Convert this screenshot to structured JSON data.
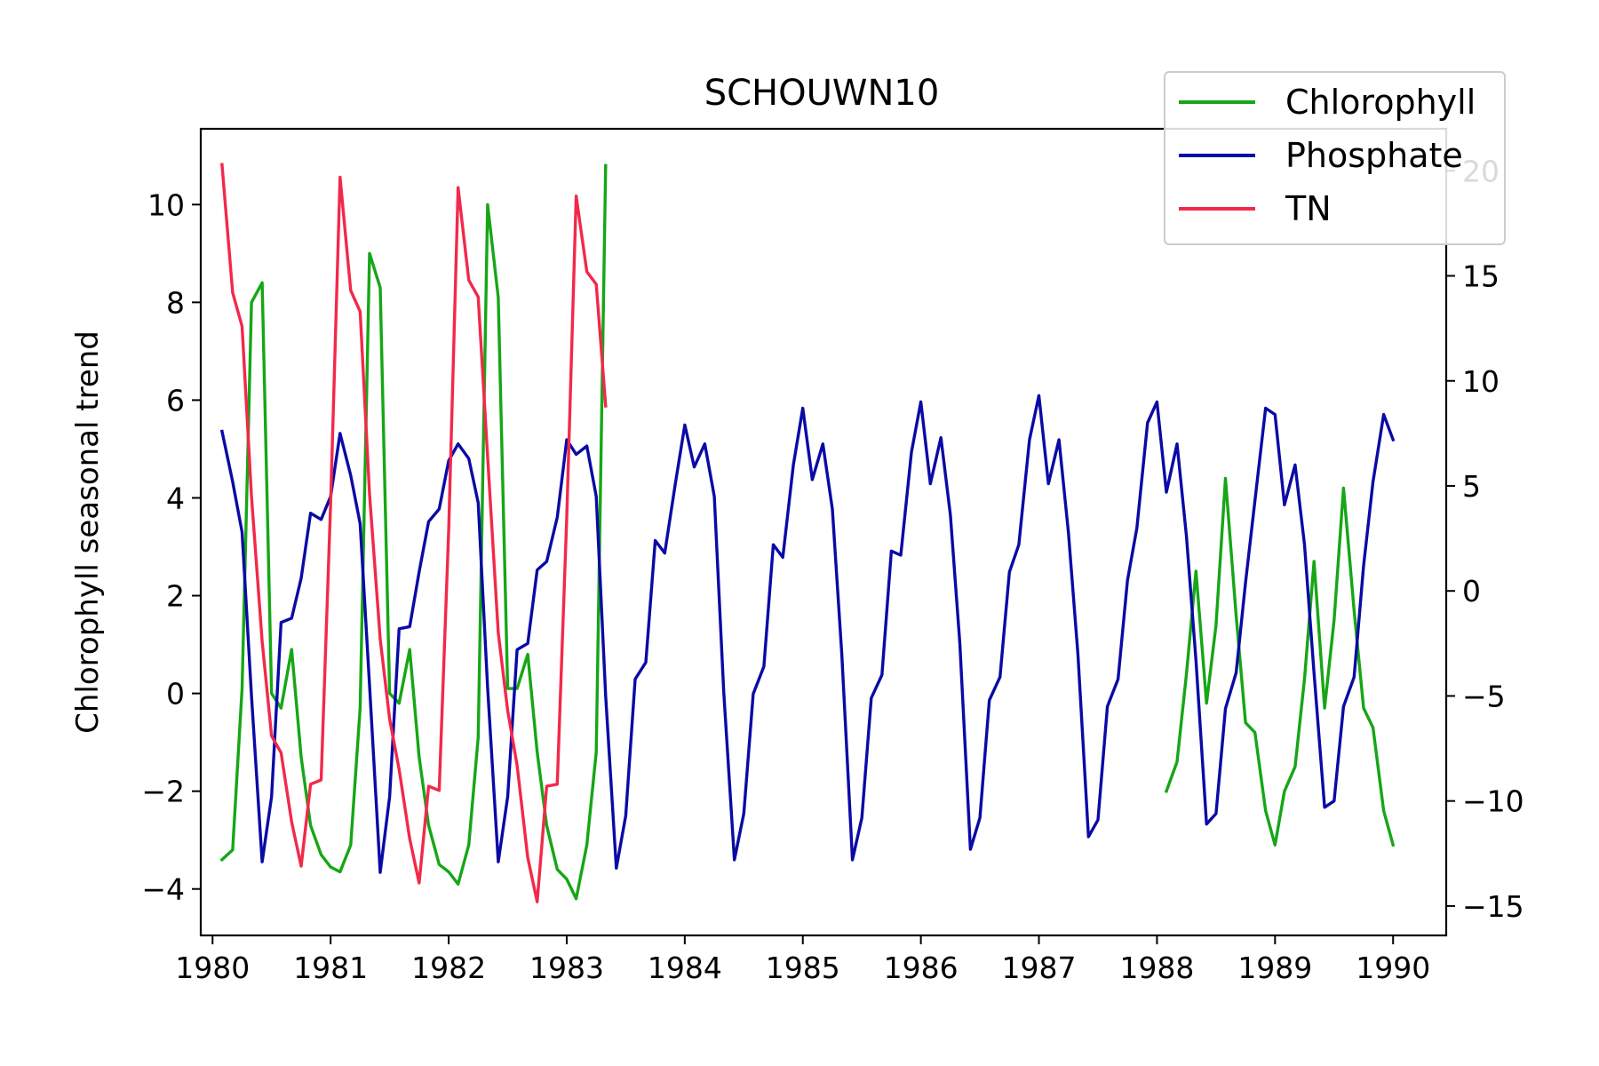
{
  "chart_data": {
    "type": "line",
    "title": "SCHOUWN10",
    "ylabel": "Chlorophyll seasonal trend",
    "xlabel": "",
    "xlim": [
      1979.9,
      1990.45
    ],
    "ylim": [
      -4.95,
      11.55
    ],
    "y2lim": [
      -16.4,
      22.0
    ],
    "xticks": [
      1980,
      1981,
      1982,
      1983,
      1984,
      1985,
      1986,
      1987,
      1988,
      1989,
      1990
    ],
    "yticks": [
      -4,
      -2,
      0,
      2,
      4,
      6,
      8,
      10
    ],
    "y2ticks": [
      -15,
      -10,
      -5,
      0,
      5,
      10,
      15,
      20
    ],
    "xtick_labels": [
      "1980",
      "1981",
      "1982",
      "1983",
      "1984",
      "1985",
      "1986",
      "1987",
      "1988",
      "1989",
      "1990"
    ],
    "ytick_labels": [
      "−4",
      "−2",
      "0",
      "2",
      "4",
      "6",
      "8",
      "10"
    ],
    "y2tick_labels": [
      "−15",
      "−10",
      "−5",
      "0",
      "5",
      "10",
      "15",
      "20"
    ],
    "legend_position": "top-right",
    "series": [
      {
        "name": "Chlorophyll",
        "axis": "left",
        "color": "#16a616",
        "segments": [
          {
            "x": [
              1980.08,
              1980.17,
              1980.25,
              1980.33,
              1980.42,
              1980.5,
              1980.58,
              1980.67,
              1980.75,
              1980.83,
              1980.92,
              1981.0,
              1981.08,
              1981.17,
              1981.25,
              1981.33,
              1981.42,
              1981.5,
              1981.58,
              1981.67,
              1981.75,
              1981.83,
              1981.92,
              1982.0,
              1982.08,
              1982.17,
              1982.25,
              1982.33,
              1982.42,
              1982.5,
              1982.58,
              1982.67,
              1982.75,
              1982.83,
              1982.92,
              1983.0,
              1983.08,
              1983.17,
              1983.25,
              1983.33
            ],
            "y": [
              -3.4,
              -3.2,
              0.1,
              8.0,
              8.4,
              0.0,
              -0.3,
              0.9,
              -1.3,
              -2.7,
              -3.3,
              -3.55,
              -3.65,
              -3.1,
              -0.3,
              9.0,
              8.3,
              0.0,
              -0.2,
              0.9,
              -1.3,
              -2.7,
              -3.5,
              -3.65,
              -3.9,
              -3.1,
              -0.9,
              10.0,
              8.1,
              0.1,
              0.1,
              0.8,
              -1.2,
              -2.7,
              -3.6,
              -3.8,
              -4.2,
              -3.1,
              -1.2,
              10.8
            ]
          },
          {
            "x": [
              1988.08,
              1988.17,
              1988.25,
              1988.33,
              1988.42,
              1988.5,
              1988.58,
              1988.67,
              1988.75,
              1988.83,
              1988.92,
              1989.0,
              1989.08,
              1989.17,
              1989.25,
              1989.33,
              1989.42,
              1989.5,
              1989.58,
              1989.67,
              1989.75,
              1989.83,
              1989.92,
              1990.0
            ],
            "y": [
              -2.0,
              -1.4,
              0.4,
              2.5,
              -0.2,
              1.4,
              4.4,
              1.6,
              -0.6,
              -0.8,
              -2.4,
              -3.1,
              -2.0,
              -1.5,
              0.3,
              2.7,
              -0.3,
              1.5,
              4.2,
              1.7,
              -0.3,
              -0.7,
              -2.4,
              -3.1
            ]
          }
        ]
      },
      {
        "name": "Phosphate",
        "axis": "right",
        "color": "#0a0aa6",
        "segments": [
          {
            "x": [
              1980.08,
              1980.17,
              1980.25,
              1980.33,
              1980.42,
              1980.5,
              1980.58,
              1980.67,
              1980.75,
              1980.83,
              1980.92,
              1981.0,
              1981.08,
              1981.17,
              1981.25,
              1981.33,
              1981.42,
              1981.5,
              1981.58,
              1981.67,
              1981.75,
              1981.83,
              1981.92,
              1982.0,
              1982.08,
              1982.17,
              1982.25,
              1982.33,
              1982.42,
              1982.5,
              1982.58,
              1982.67,
              1982.75,
              1982.83,
              1982.92,
              1983.0,
              1983.08,
              1983.17,
              1983.25,
              1983.33,
              1983.42,
              1983.5,
              1983.58,
              1983.67,
              1983.75,
              1983.83,
              1983.92,
              1984.0,
              1984.08,
              1984.17,
              1984.25,
              1984.33,
              1984.42,
              1984.5,
              1984.58,
              1984.67,
              1984.75,
              1984.83,
              1984.92,
              1985.0,
              1985.08,
              1985.17,
              1985.25,
              1985.33,
              1985.42,
              1985.5,
              1985.58,
              1985.67,
              1985.75,
              1985.83,
              1985.92,
              1986.0,
              1986.08,
              1986.17,
              1986.25,
              1986.33,
              1986.42,
              1986.5,
              1986.58,
              1986.67,
              1986.75,
              1986.83,
              1986.92,
              1987.0,
              1987.08,
              1987.17,
              1987.25,
              1987.33,
              1987.42,
              1987.5,
              1987.58,
              1987.67,
              1987.75,
              1987.83,
              1987.92,
              1988.0,
              1988.08,
              1988.17,
              1988.25,
              1988.33,
              1988.42,
              1988.5,
              1988.58,
              1988.67,
              1988.75,
              1988.83,
              1988.92,
              1989.0,
              1989.08,
              1989.17,
              1989.25,
              1989.33,
              1989.42,
              1989.5,
              1989.58,
              1989.67,
              1989.75,
              1989.83,
              1989.92,
              1990.0
            ],
            "y": [
              7.6,
              5.2,
              2.8,
              -5.0,
              -12.9,
              -9.8,
              -1.5,
              -1.3,
              0.6,
              3.7,
              3.4,
              4.5,
              7.5,
              5.5,
              3.2,
              -4.5,
              -13.4,
              -9.8,
              -1.8,
              -1.7,
              0.9,
              3.3,
              3.9,
              6.2,
              7.0,
              6.3,
              4.2,
              -4.6,
              -12.9,
              -9.8,
              -2.8,
              -2.5,
              1.0,
              1.4,
              3.5,
              7.2,
              6.5,
              6.9,
              4.5,
              -5.0,
              -13.2,
              -10.7,
              -4.2,
              -3.4,
              2.4,
              1.8,
              5.1,
              7.9,
              5.9,
              7.0,
              4.5,
              -4.8,
              -12.8,
              -10.6,
              -4.9,
              -3.6,
              2.2,
              1.6,
              6.0,
              8.7,
              5.3,
              7.0,
              3.9,
              -3.0,
              -12.8,
              -10.8,
              -5.1,
              -4.0,
              1.9,
              1.7,
              6.6,
              9.0,
              5.1,
              7.3,
              3.6,
              -2.5,
              -12.3,
              -10.8,
              -5.2,
              -4.1,
              0.9,
              2.2,
              7.2,
              9.3,
              5.1,
              7.2,
              2.8,
              -3.0,
              -11.7,
              -10.9,
              -5.5,
              -4.2,
              0.5,
              3.0,
              8.0,
              9.0,
              4.7,
              7.0,
              2.6,
              -3.3,
              -11.1,
              -10.6,
              -5.6,
              -3.9,
              0.4,
              4.3,
              8.7,
              8.4,
              4.1,
              6.0,
              2.2,
              -3.9,
              -10.3,
              -10.0,
              -5.5,
              -4.1,
              1.2,
              5.2,
              8.4,
              7.2
            ]
          }
        ]
      },
      {
        "name": "TN",
        "axis": "right",
        "color": "#f2294a",
        "segments": [
          {
            "x": [
              1980.08,
              1980.17,
              1980.25,
              1980.33,
              1980.42,
              1980.5,
              1980.58,
              1980.67,
              1980.75,
              1980.83,
              1980.92,
              1981.0,
              1981.08,
              1981.17,
              1981.25,
              1981.33,
              1981.42,
              1981.5,
              1981.58,
              1981.67,
              1981.75,
              1981.83,
              1981.92,
              1982.0,
              1982.08,
              1982.17,
              1982.25,
              1982.33,
              1982.42,
              1982.5,
              1982.58,
              1982.67,
              1982.75,
              1982.83,
              1982.92,
              1983.0,
              1983.08,
              1983.17,
              1983.25,
              1983.33
            ],
            "y": [
              20.3,
              14.2,
              12.6,
              4.5,
              -2.4,
              -6.9,
              -7.7,
              -11.0,
              -13.1,
              -9.2,
              -9.0,
              4.2,
              19.7,
              14.3,
              13.3,
              4.6,
              -2.3,
              -6.1,
              -8.5,
              -11.8,
              -13.9,
              -9.3,
              -9.5,
              2.9,
              19.2,
              14.8,
              14.0,
              6.4,
              -2.0,
              -5.7,
              -8.3,
              -12.7,
              -14.8,
              -9.3,
              -9.2,
              3.5,
              18.8,
              15.2,
              14.6,
              8.8
            ]
          }
        ]
      }
    ]
  }
}
